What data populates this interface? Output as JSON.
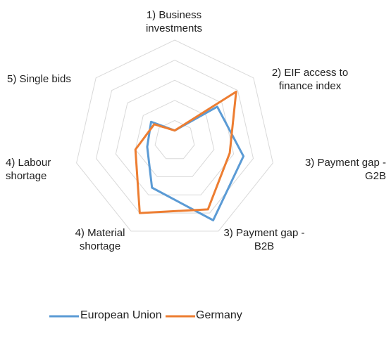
{
  "chart_data": {
    "type": "radar",
    "categories": [
      "1) Business investments",
      "2) EIF access to finance index",
      "3) Payment gap - G2B",
      "3) Payment gap - B2B",
      "4) Material shortage",
      "4) Labour shortage",
      "5) Single bids"
    ],
    "rlim": [
      0,
      5
    ],
    "rticks": [
      1,
      2,
      3,
      4,
      5
    ],
    "grid": true,
    "series": [
      {
        "name": "European Union",
        "color": "#5b9bd5",
        "values": [
          0.5,
          2.7,
          3.5,
          4.4,
          2.6,
          1.4,
          1.5
        ]
      },
      {
        "name": "Germany",
        "color": "#ed7d31",
        "values": [
          0.5,
          3.9,
          2.8,
          3.8,
          4.0,
          2.0,
          1.3
        ]
      }
    ]
  }
}
